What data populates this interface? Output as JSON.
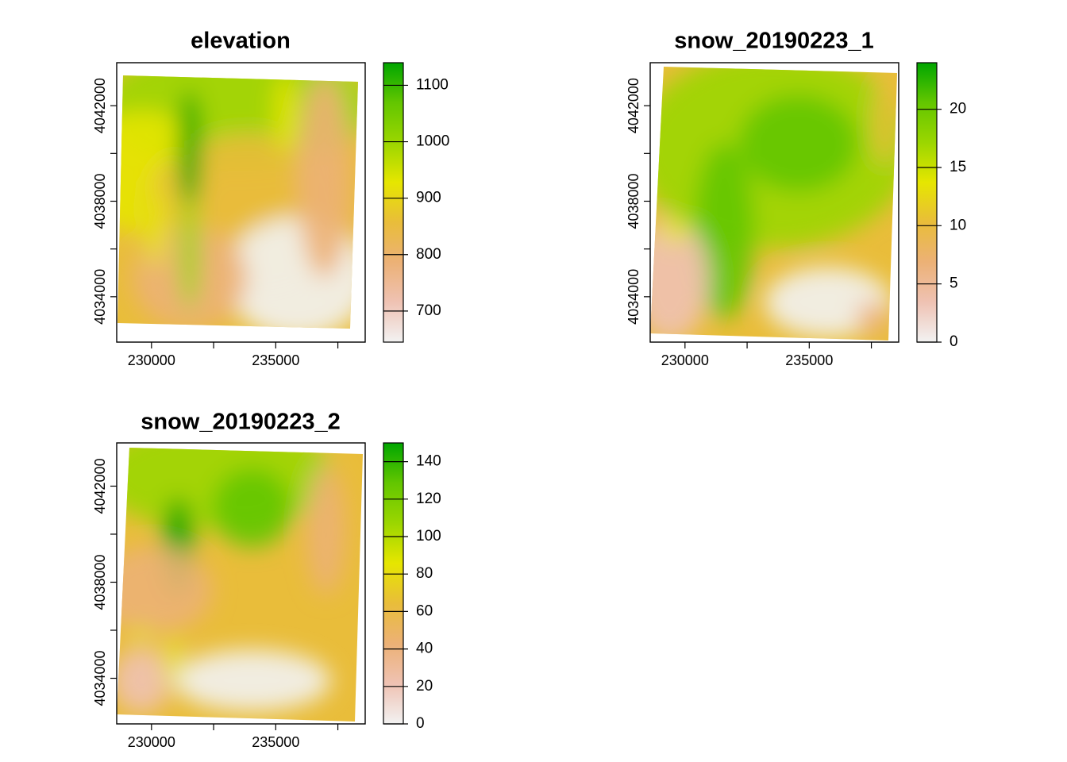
{
  "chart_data": [
    {
      "type": "heatmap",
      "title": "elevation",
      "xlabel": "",
      "ylabel": "",
      "xlim": [
        228600,
        238600
      ],
      "ylim": [
        4032100,
        4043800
      ],
      "x_ticks": [
        {
          "value": 230000,
          "label": "230000"
        },
        {
          "value": 235000,
          "label": "235000"
        }
      ],
      "y_ticks": [
        {
          "value": 4034000,
          "label": "4034000"
        },
        {
          "value": 4038000,
          "label": "4038000"
        },
        {
          "value": 4042000,
          "label": "4042000"
        }
      ],
      "legend": {
        "position": "right",
        "min": 645,
        "max": 1140,
        "ticks": [
          {
            "value": 700,
            "label": "700"
          },
          {
            "value": 800,
            "label": "800"
          },
          {
            "value": 900,
            "label": "900"
          },
          {
            "value": 1000,
            "label": "1000"
          },
          {
            "value": 1100,
            "label": "1100"
          }
        ]
      },
      "colormap": [
        "#F2F2F2",
        "#EFC2B3",
        "#ECB176",
        "#E9BD3A",
        "#E6E600",
        "#9BD600",
        "#63C600",
        "#00A600"
      ]
    },
    {
      "type": "heatmap",
      "title": "snow_20190223_1",
      "xlabel": "",
      "ylabel": "",
      "xlim": [
        228600,
        238600
      ],
      "ylim": [
        4032100,
        4043800
      ],
      "x_ticks": [
        {
          "value": 230000,
          "label": "230000"
        },
        {
          "value": 235000,
          "label": "235000"
        }
      ],
      "y_ticks": [
        {
          "value": 4034000,
          "label": "4034000"
        },
        {
          "value": 4038000,
          "label": "4038000"
        },
        {
          "value": 4042000,
          "label": "4042000"
        }
      ],
      "legend": {
        "position": "right",
        "min": 0,
        "max": 24,
        "ticks": [
          {
            "value": 0,
            "label": "0"
          },
          {
            "value": 5,
            "label": "5"
          },
          {
            "value": 10,
            "label": "10"
          },
          {
            "value": 15,
            "label": "15"
          },
          {
            "value": 20,
            "label": "20"
          }
        ]
      },
      "colormap": [
        "#F2F2F2",
        "#EFC2B3",
        "#ECB176",
        "#E9BD3A",
        "#E6E600",
        "#9BD600",
        "#63C600",
        "#00A600"
      ]
    },
    {
      "type": "heatmap",
      "title": "snow_20190223_2",
      "xlabel": "",
      "ylabel": "",
      "xlim": [
        228600,
        238600
      ],
      "ylim": [
        4032100,
        4043800
      ],
      "x_ticks": [
        {
          "value": 230000,
          "label": "230000"
        },
        {
          "value": 235000,
          "label": "235000"
        }
      ],
      "y_ticks": [
        {
          "value": 4034000,
          "label": "4034000"
        },
        {
          "value": 4038000,
          "label": "4038000"
        },
        {
          "value": 4042000,
          "label": "4042000"
        }
      ],
      "legend": {
        "position": "right",
        "min": 0,
        "max": 150,
        "ticks": [
          {
            "value": 0,
            "label": "0"
          },
          {
            "value": 20,
            "label": "20"
          },
          {
            "value": 40,
            "label": "40"
          },
          {
            "value": 60,
            "label": "60"
          },
          {
            "value": 80,
            "label": "80"
          },
          {
            "value": 100,
            "label": "100"
          },
          {
            "value": 120,
            "label": "120"
          },
          {
            "value": 140,
            "label": "140"
          }
        ]
      },
      "colormap": [
        "#F2F2F2",
        "#EFC2B3",
        "#ECB176",
        "#E9BD3A",
        "#E6E600",
        "#9BD600",
        "#63C600",
        "#00A600"
      ]
    }
  ]
}
